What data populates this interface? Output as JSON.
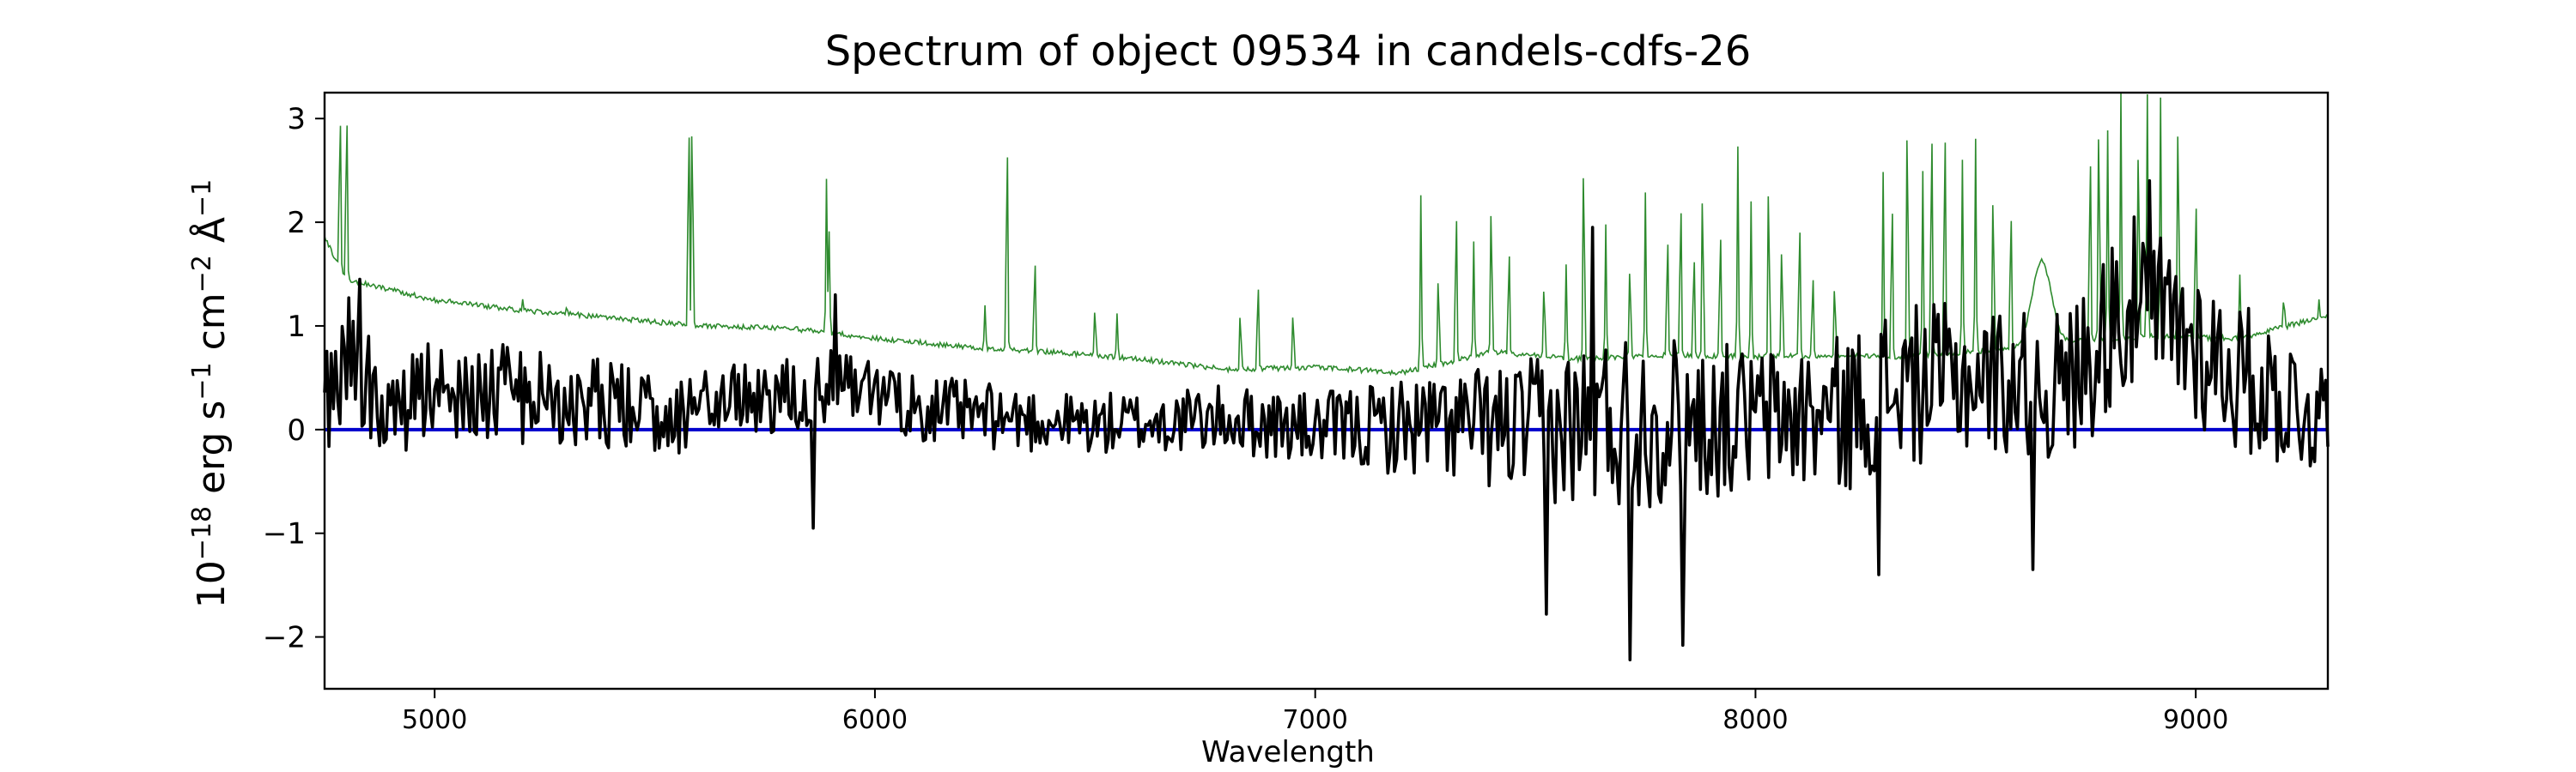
{
  "chart_data": {
    "type": "line",
    "title": "Spectrum of object 09534 in candels-cdfs-26",
    "xlabel": "Wavelength",
    "ylabel": {
      "base": "10",
      "exp": "−18",
      "unit1": " erg s",
      "unit1_exp": "−1",
      "unit2": " cm",
      "unit2_exp": "−2",
      "unit3": " Å",
      "unit3_exp": "−1"
    },
    "xlim": [
      4750,
      9300
    ],
    "ylim": [
      -2.5,
      3.25
    ],
    "xticks": [
      5000,
      6000,
      7000,
      8000,
      9000
    ],
    "xtick_labels": [
      "5000",
      "6000",
      "7000",
      "8000",
      "9000"
    ],
    "yticks": [
      -2,
      -1,
      0,
      1,
      2,
      3
    ],
    "ytick_labels": [
      "−2",
      "−1",
      "0",
      "1",
      "2",
      "3"
    ],
    "grid": false,
    "colors": {
      "flux": "#000000",
      "sky": "#2e8b2e",
      "zero": "#0000cc"
    },
    "zero_line": 0,
    "series": [
      {
        "role": "sky",
        "color": "#2e8b2e",
        "continuum": [
          [
            4750,
            1.85
          ],
          [
            4800,
            1.45
          ],
          [
            4900,
            1.35
          ],
          [
            5000,
            1.25
          ],
          [
            5200,
            1.15
          ],
          [
            5400,
            1.08
          ],
          [
            5600,
            1.0
          ],
          [
            5800,
            0.98
          ],
          [
            6000,
            0.88
          ],
          [
            6200,
            0.8
          ],
          [
            6400,
            0.75
          ],
          [
            6600,
            0.68
          ],
          [
            6800,
            0.58
          ],
          [
            7000,
            0.6
          ],
          [
            7200,
            0.55
          ],
          [
            7400,
            0.75
          ],
          [
            7600,
            0.68
          ],
          [
            7800,
            0.72
          ],
          [
            8000,
            0.7
          ],
          [
            8200,
            0.72
          ],
          [
            8300,
            0.7
          ],
          [
            8500,
            0.75
          ],
          [
            8700,
            0.85
          ],
          [
            8900,
            0.9
          ],
          [
            9100,
            0.88
          ],
          [
            9300,
            1.1
          ]
        ],
        "lines": [
          [
            4785,
            3.25
          ],
          [
            4800,
            3.25
          ],
          [
            5200,
            1.25
          ],
          [
            5300,
            1.2
          ],
          [
            5577,
            3.25
          ],
          [
            5585,
            3.25
          ],
          [
            5890,
            2.4
          ],
          [
            5896,
            1.9
          ],
          [
            6250,
            1.2
          ],
          [
            6300,
            3.05
          ],
          [
            6363,
            1.8
          ],
          [
            6500,
            1.2
          ],
          [
            6550,
            1.1
          ],
          [
            6830,
            1.2
          ],
          [
            6870,
            1.5
          ],
          [
            6950,
            1.2
          ],
          [
            7240,
            2.25
          ],
          [
            7280,
            1.6
          ],
          [
            7320,
            2.3
          ],
          [
            7360,
            1.8
          ],
          [
            7400,
            2.35
          ],
          [
            7440,
            1.9
          ],
          [
            7520,
            1.5
          ],
          [
            7570,
            1.6
          ],
          [
            7610,
            2.8
          ],
          [
            7660,
            2.0
          ],
          [
            7715,
            1.7
          ],
          [
            7750,
            2.3
          ],
          [
            7800,
            2.0
          ],
          [
            7830,
            2.4
          ],
          [
            7860,
            1.8
          ],
          [
            7880,
            2.5
          ],
          [
            7920,
            2.1
          ],
          [
            7960,
            2.75
          ],
          [
            7990,
            2.2
          ],
          [
            8030,
            2.6
          ],
          [
            8060,
            1.9
          ],
          [
            8100,
            2.2
          ],
          [
            8130,
            1.6
          ],
          [
            8180,
            1.5
          ],
          [
            8290,
            2.5
          ],
          [
            8310,
            2.4
          ],
          [
            8345,
            3.25
          ],
          [
            8380,
            2.5
          ],
          [
            8400,
            3.25
          ],
          [
            8430,
            3.25
          ],
          [
            8470,
            2.6
          ],
          [
            8500,
            2.8
          ],
          [
            8540,
            2.5
          ],
          [
            8580,
            2.3
          ],
          [
            8760,
            2.9
          ],
          [
            8780,
            3.25
          ],
          [
            8800,
            2.9
          ],
          [
            8830,
            3.25
          ],
          [
            8870,
            3.0
          ],
          [
            8890,
            3.25
          ],
          [
            8920,
            3.2
          ],
          [
            8960,
            3.25
          ],
          [
            9000,
            2.4
          ],
          [
            9100,
            1.5
          ],
          [
            9200,
            1.3
          ],
          [
            9280,
            1.25
          ]
        ],
        "bumps": [
          [
            8650,
            0.8,
            30
          ]
        ]
      },
      {
        "role": "flux",
        "color": "#000000",
        "anchors": [
          [
            4750,
            0.15
          ],
          [
            4800,
            0.8
          ],
          [
            4900,
            0.1
          ],
          [
            5000,
            0.4
          ],
          [
            5300,
            0.3
          ],
          [
            5500,
            0.15
          ],
          [
            5700,
            0.3
          ],
          [
            5900,
            0.4
          ],
          [
            6200,
            0.15
          ],
          [
            6500,
            0.05
          ],
          [
            6800,
            0.1
          ],
          [
            7000,
            0.0
          ],
          [
            7300,
            0.05
          ],
          [
            7500,
            0.0
          ],
          [
            7700,
            0.1
          ],
          [
            8000,
            0.1
          ],
          [
            8200,
            0.15
          ],
          [
            8300,
            0.4
          ],
          [
            8500,
            0.5
          ],
          [
            8700,
            0.4
          ],
          [
            8850,
            1.2
          ],
          [
            8950,
            1.0
          ],
          [
            9100,
            0.5
          ],
          [
            9300,
            0.1
          ]
        ],
        "noise": [
          [
            4750,
            0.6
          ],
          [
            5000,
            0.5
          ],
          [
            6000,
            0.35
          ],
          [
            6500,
            0.3
          ],
          [
            7000,
            0.35
          ],
          [
            7400,
            0.6
          ],
          [
            7700,
            0.9
          ],
          [
            8000,
            0.7
          ],
          [
            8300,
            0.8
          ],
          [
            8600,
            0.7
          ],
          [
            8900,
            0.9
          ],
          [
            9300,
            0.6
          ]
        ],
        "peaks": [
          [
            7630,
            1.95
          ],
          [
            8895,
            2.4
          ],
          [
            8810,
            1.75
          ],
          [
            4830,
            1.45
          ],
          [
            5910,
            1.3
          ]
        ],
        "dips": [
          [
            7715,
            -2.22
          ],
          [
            7835,
            -2.08
          ],
          [
            7525,
            -1.78
          ],
          [
            8280,
            -1.4
          ],
          [
            8630,
            -1.35
          ],
          [
            5860,
            -0.95
          ]
        ]
      }
    ]
  }
}
